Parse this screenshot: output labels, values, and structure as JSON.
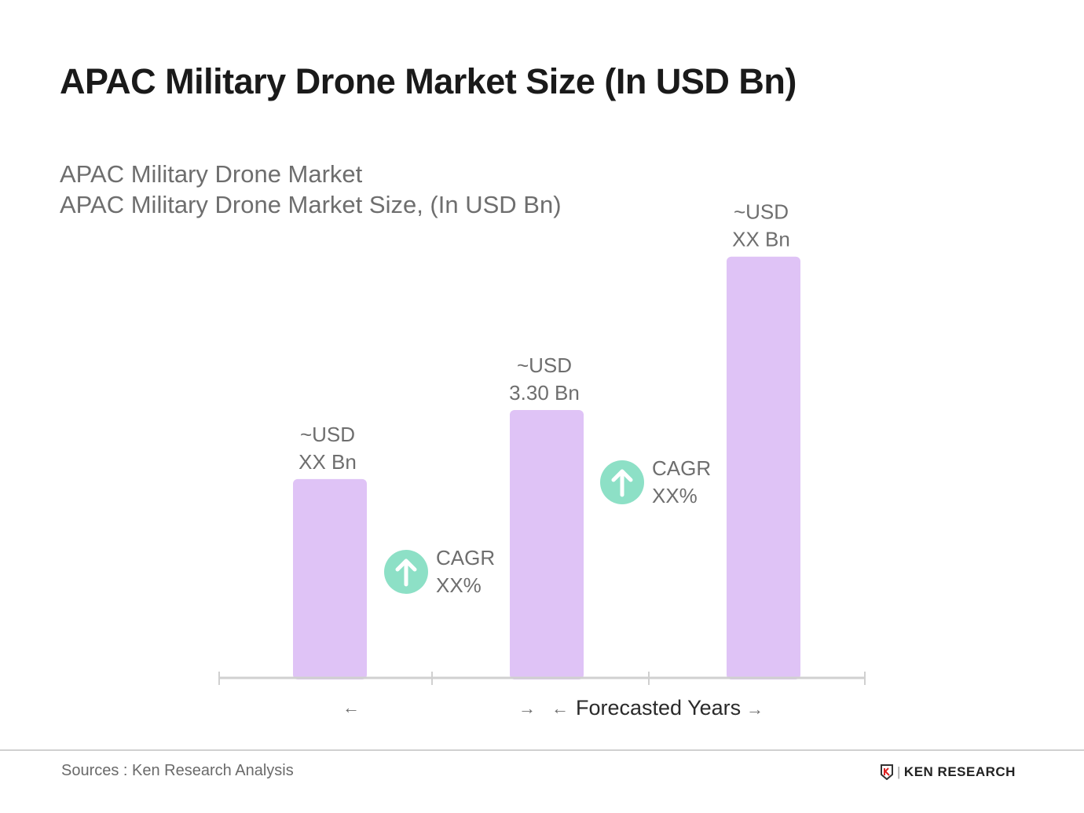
{
  "header": {
    "title": "APAC Military Drone Market Size (In USD Bn)"
  },
  "chart_data": {
    "type": "bar",
    "title": "APAC Military Drone Market",
    "subtitle": "APAC Military Drone Market Size, (In USD Bn)",
    "categories": [
      "",
      "",
      ""
    ],
    "values": [
      2.45,
      3.3,
      5.19
    ],
    "data_labels": [
      [
        "~USD",
        "XX Bn"
      ],
      [
        "~USD",
        "3.30 Bn"
      ],
      [
        "~USD",
        "XX Bn"
      ]
    ],
    "ylim": [
      0,
      6
    ],
    "grid": false,
    "bar_color": "#dfc3f6",
    "cagr": [
      {
        "label": "CAGR",
        "value": "XX%"
      },
      {
        "label": "CAGR",
        "value": "XX%"
      }
    ],
    "cagr_color": "#8de0c6",
    "xlabel": "Forecasted Years",
    "arrows": {
      "left": "←",
      "right": "→"
    }
  },
  "footer": {
    "source": "Sources : Ken Research Analysis",
    "logo": "KEN RESEARCH"
  }
}
